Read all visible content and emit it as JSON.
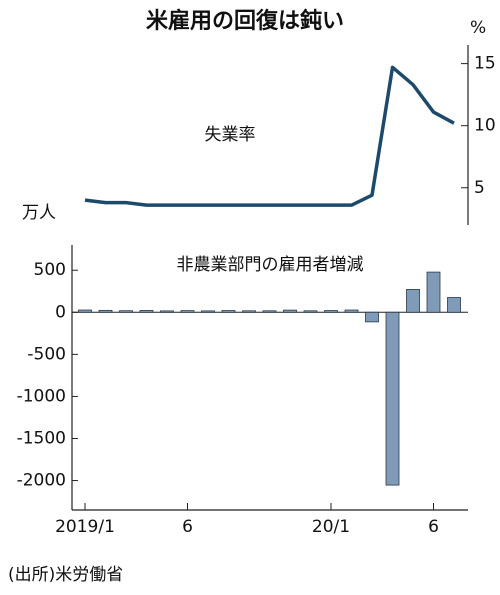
{
  "chart_data": [
    {
      "type": "line",
      "title": "米雇用の回復は鈍い",
      "label": "失業率",
      "unit": "%",
      "axis_side": "right",
      "series": [
        {
          "name": "失業率",
          "color": "#1d4a6b",
          "values": [
            4.0,
            3.8,
            3.8,
            3.6,
            3.6,
            3.6,
            3.6,
            3.6,
            3.6,
            3.6,
            3.6,
            3.6,
            3.6,
            3.6,
            4.4,
            14.7,
            13.3,
            11.1,
            10.2
          ]
        }
      ],
      "ylim": [
        2,
        16.5
      ],
      "yticks": [
        5,
        10,
        15
      ]
    },
    {
      "type": "bar",
      "title": "非農業部門の雇用者増減",
      "unit": "万人",
      "categories": [
        "2019/1",
        null,
        null,
        null,
        null,
        "6",
        null,
        null,
        null,
        null,
        null,
        null,
        "20/1",
        null,
        null,
        null,
        null,
        "6",
        null
      ],
      "series": [
        {
          "name": "非農業部門の雇用者増減",
          "color": "#7f9bb8",
          "values": [
            27,
            23,
            19,
            22,
            17,
            20,
            17,
            21,
            18,
            18,
            26,
            18,
            21,
            27,
            -114,
            -2054,
            272,
            478,
            176
          ]
        }
      ],
      "ylim": [
        -2350,
        800
      ],
      "yticks": [
        500,
        0,
        -500,
        -1000,
        -1500,
        -2000
      ]
    }
  ],
  "source": "(出所)米労働省"
}
